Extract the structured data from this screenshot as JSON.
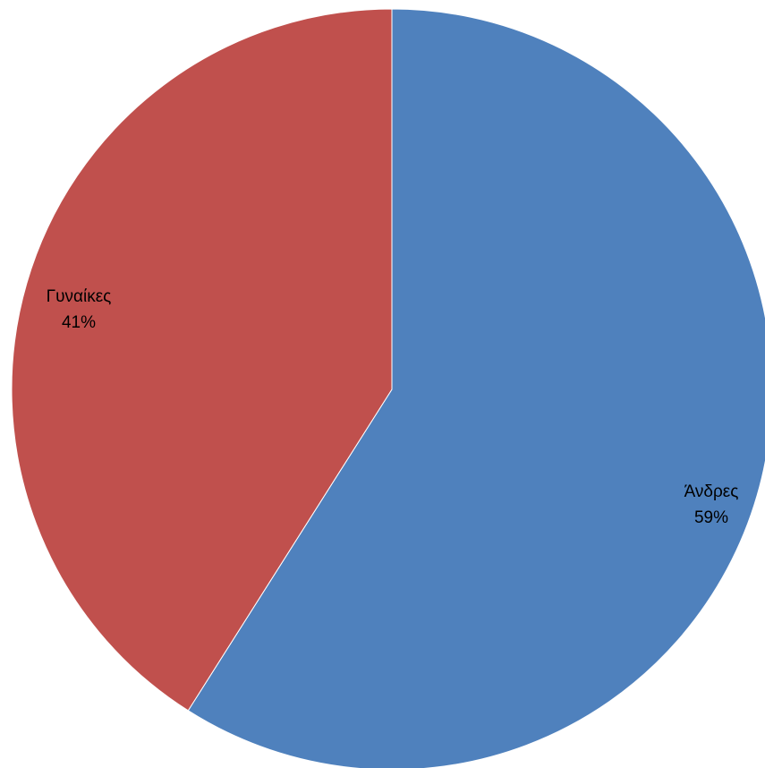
{
  "chart_data": {
    "type": "pie",
    "title": "",
    "slices": [
      {
        "label": "Άνδρες",
        "value": 59,
        "display": "59%",
        "color": "#4F81BD"
      },
      {
        "label": "Γυναίκες",
        "value": 41,
        "display": "41%",
        "color": "#C0504D"
      }
    ],
    "start_angle": "12 o'clock",
    "direction": "clockwise",
    "legend": "none",
    "data_labels": "category and percentage"
  }
}
